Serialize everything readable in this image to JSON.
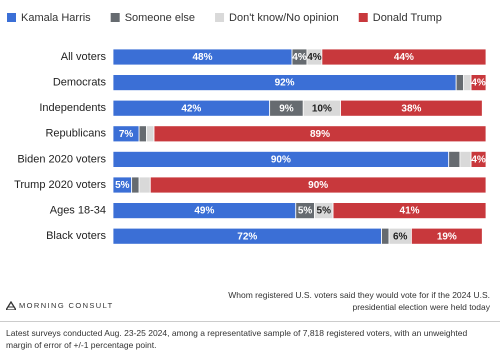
{
  "chart_data": {
    "type": "stacked-bar",
    "categories": [
      "All voters",
      "Democrats",
      "Independents",
      "Republicans",
      "Biden 2020 voters",
      "Trump 2020 voters",
      "Ages 18-34",
      "Black voters"
    ],
    "xlim": [
      0,
      100
    ],
    "legend": "top-left",
    "series": [
      {
        "name": "Kamala Harris",
        "color": "#3b6fd6",
        "label_color": "#ffffff",
        "values": [
          48,
          92,
          42,
          7,
          90,
          5,
          49,
          72
        ],
        "value_labels": [
          "48%",
          "92%",
          "42%",
          "7%",
          "90%",
          "5%",
          "49%",
          "72%"
        ]
      },
      {
        "name": "Someone else",
        "color": "#666b70",
        "label_color": "#ffffff",
        "values": [
          4,
          2,
          9,
          2,
          3,
          2,
          5,
          2
        ],
        "value_labels": [
          "4%",
          null,
          "9%",
          null,
          null,
          null,
          "5%",
          null
        ]
      },
      {
        "name": "Don't know/No opinion",
        "color": "#d9d9d9",
        "label_color": "#222222",
        "values": [
          4,
          2,
          10,
          2,
          3,
          3,
          5,
          6
        ],
        "value_labels": [
          "4%",
          null,
          "10%",
          null,
          null,
          null,
          "5%",
          "6%"
        ]
      },
      {
        "name": "Donald Trump",
        "color": "#c8383c",
        "label_color": "#ffffff",
        "values": [
          44,
          4,
          38,
          89,
          4,
          90,
          41,
          19
        ],
        "value_labels": [
          "44%",
          "4%",
          "38%",
          "89%",
          "4%",
          "90%",
          "41%",
          "19%"
        ]
      }
    ]
  },
  "footer": {
    "logo": "MORNING CONSULT",
    "note": "Whom registered U.S. voters said they would vote for if the 2024 U.S. presidential election were held today",
    "source": "Latest surveys conducted Aug. 23-25 2024, among a representative sample of 7,818 registered voters, with an unweighted margin of error of +/-1 percentage point."
  }
}
